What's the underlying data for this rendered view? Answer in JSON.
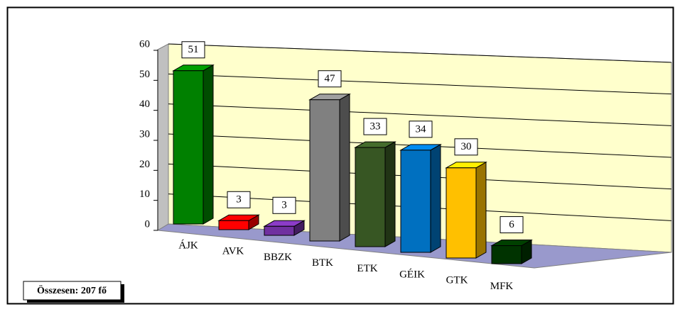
{
  "chart_data": {
    "type": "bar3d",
    "categories": [
      "ÁJK",
      "AVK",
      "BBZK",
      "BTK",
      "ETK",
      "GÉIK",
      "GTK",
      "MFK"
    ],
    "values": [
      51,
      3,
      3,
      47,
      33,
      34,
      30,
      6
    ],
    "colors": [
      "#008000",
      "#ff0000",
      "#7030a0",
      "#808080",
      "#375623",
      "#0070c0",
      "#ffc000",
      "#003300"
    ],
    "ylim": [
      0,
      60
    ],
    "yticks": [
      0,
      10,
      20,
      30,
      40,
      50,
      60
    ],
    "grid": true,
    "annotation": "Összesen: 207 fő"
  }
}
